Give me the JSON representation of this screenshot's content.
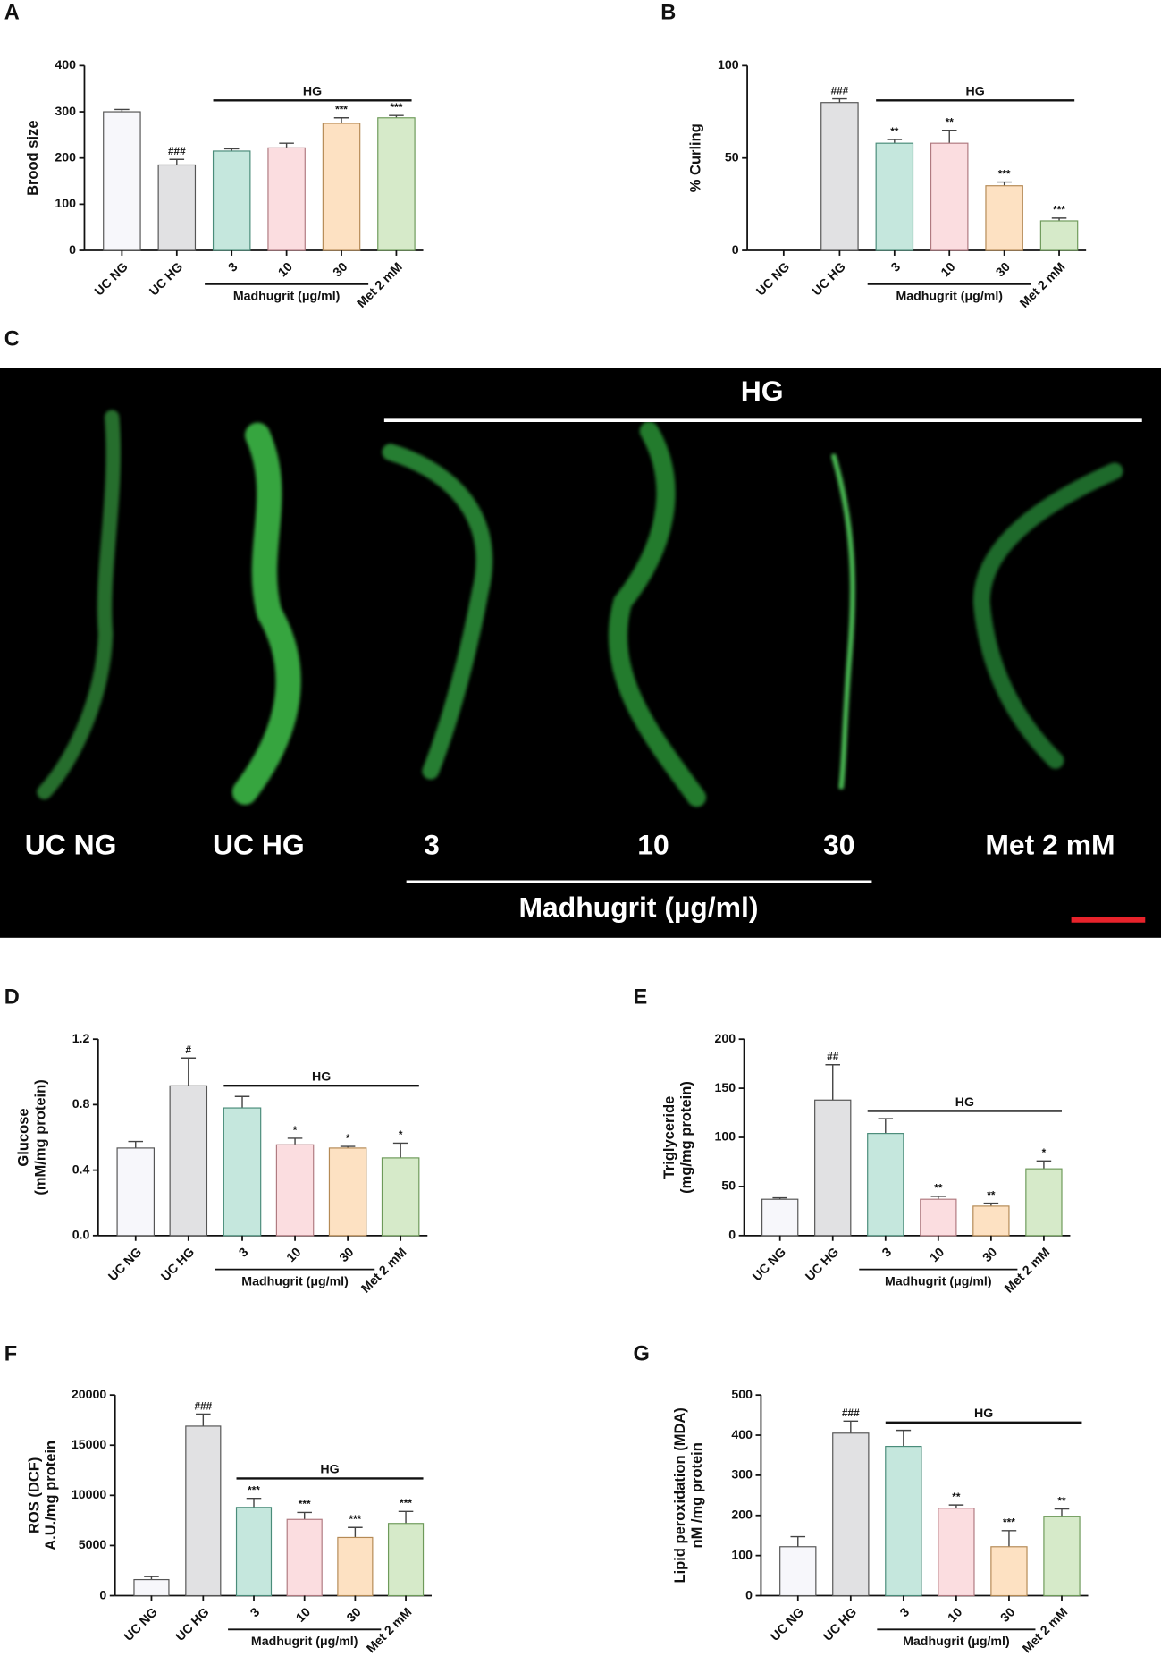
{
  "chart_data": [
    {
      "panel": "A",
      "type": "bar",
      "ylabel": [
        "Brood size"
      ],
      "categories": [
        "UC NG",
        "UC HG",
        "3",
        "10",
        "30",
        "Met 2 mM"
      ],
      "values": [
        300,
        185,
        215,
        222,
        275,
        287
      ],
      "errors": [
        5,
        12,
        5,
        10,
        12,
        5
      ],
      "annotations": [
        null,
        "###",
        null,
        null,
        "***",
        "***"
      ],
      "colors": [
        "#f7f7fb",
        "#e1e1e3",
        "#c5e7dd",
        "#fbdde0",
        "#fde1c2",
        "#d6eac9"
      ],
      "edge_colors": [
        "#555",
        "#555",
        "#4a8c7a",
        "#b07a80",
        "#b58a55",
        "#6e9a5a"
      ],
      "group_label": "HG",
      "sub_label": "Madhugrit (μg/ml)",
      "ylim": [
        0,
        400
      ],
      "yticks": [
        0,
        100,
        200,
        300,
        400
      ]
    },
    {
      "panel": "B",
      "type": "bar",
      "ylabel": [
        "% Curling"
      ],
      "categories": [
        "UC NG",
        "UC HG",
        "3",
        "10",
        "30",
        "Met 2 mM"
      ],
      "values": [
        0,
        80,
        58,
        58,
        35,
        16
      ],
      "errors": [
        0,
        2,
        2,
        7,
        2,
        1.5
      ],
      "annotations": [
        null,
        "###",
        "**",
        "**",
        "***",
        "***"
      ],
      "colors": [
        "#f7f7fb",
        "#e1e1e3",
        "#c5e7dd",
        "#fbdde0",
        "#fde1c2",
        "#d6eac9"
      ],
      "edge_colors": [
        "#555",
        "#555",
        "#4a8c7a",
        "#b07a80",
        "#b58a55",
        "#6e9a5a"
      ],
      "group_label": "HG",
      "sub_label": "Madhugrit (μg/ml)",
      "ylim": [
        0,
        100
      ],
      "yticks": [
        0,
        50,
        100
      ]
    },
    {
      "panel": "D",
      "type": "bar",
      "ylabel": [
        "Glucose",
        "(mM/mg protein)"
      ],
      "categories": [
        "UC NG",
        "UC HG",
        "3",
        "10",
        "30",
        "Met 2 mM"
      ],
      "values": [
        0.535,
        0.915,
        0.78,
        0.555,
        0.535,
        0.475
      ],
      "errors": [
        0.04,
        0.17,
        0.07,
        0.04,
        0.01,
        0.09
      ],
      "annotations": [
        null,
        "#",
        null,
        "*",
        "*",
        "*"
      ],
      "colors": [
        "#f7f7fb",
        "#e1e1e3",
        "#c5e7dd",
        "#fbdde0",
        "#fde1c2",
        "#d6eac9"
      ],
      "edge_colors": [
        "#555",
        "#555",
        "#4a8c7a",
        "#b07a80",
        "#b58a55",
        "#6e9a5a"
      ],
      "group_label": "HG",
      "sub_label": "Madhugrit (μg/ml)",
      "ylim": [
        0,
        1.2
      ],
      "yticks": [
        {
          "value": 0,
          "label": "0.0"
        },
        0.4,
        0.8,
        1.2
      ]
    },
    {
      "panel": "E",
      "type": "bar",
      "ylabel": [
        "Triglyceride",
        "(mg/mg protein)"
      ],
      "categories": [
        "UC NG",
        "UC HG",
        "3",
        "10",
        "30",
        "Met 2 mM"
      ],
      "values": [
        37,
        138,
        104,
        37,
        30,
        68
      ],
      "errors": [
        1.5,
        36,
        15,
        3,
        3,
        8
      ],
      "annotations": [
        null,
        "##",
        null,
        "**",
        "**",
        "*"
      ],
      "colors": [
        "#f7f7fb",
        "#e1e1e3",
        "#c5e7dd",
        "#fbdde0",
        "#fde1c2",
        "#d6eac9"
      ],
      "edge_colors": [
        "#555",
        "#555",
        "#4a8c7a",
        "#b07a80",
        "#b58a55",
        "#6e9a5a"
      ],
      "group_label": "HG",
      "sub_label": "Madhugrit (μg/ml)",
      "ylim": [
        0,
        200
      ],
      "yticks": [
        0,
        50,
        100,
        150,
        200
      ]
    },
    {
      "panel": "F",
      "type": "bar",
      "ylabel": [
        "ROS (DCF)",
        "A.U./mg protein"
      ],
      "categories": [
        "UC NG",
        "UC HG",
        "3",
        "10",
        "30",
        "Met 2 mM"
      ],
      "values": [
        1600,
        16900,
        8800,
        7600,
        5800,
        7200
      ],
      "errors": [
        300,
        1200,
        900,
        700,
        1000,
        1200
      ],
      "annotations": [
        null,
        "###",
        "***",
        "***",
        "***",
        "***"
      ],
      "colors": [
        "#f7f7fb",
        "#e1e1e3",
        "#c5e7dd",
        "#fbdde0",
        "#fde1c2",
        "#d6eac9"
      ],
      "edge_colors": [
        "#555",
        "#555",
        "#4a8c7a",
        "#b07a80",
        "#b58a55",
        "#6e9a5a"
      ],
      "group_label": "HG",
      "sub_label": "Madhugrit (μg/ml)",
      "ylim": [
        0,
        20000
      ],
      "yticks": [
        0,
        5000,
        10000,
        15000,
        20000
      ]
    },
    {
      "panel": "G",
      "type": "bar",
      "ylabel": [
        "Lipid peroxidation (MDA)",
        "nM /mg protein"
      ],
      "categories": [
        "UC NG",
        "UC HG",
        "3",
        "10",
        "30",
        "Met 2 mM"
      ],
      "values": [
        122,
        405,
        372,
        218,
        122,
        198
      ],
      "errors": [
        25,
        30,
        40,
        8,
        40,
        18
      ],
      "annotations": [
        null,
        "###",
        null,
        "**",
        "***",
        "**"
      ],
      "colors": [
        "#f7f7fb",
        "#e1e1e3",
        "#c5e7dd",
        "#fbdde0",
        "#fde1c2",
        "#d6eac9"
      ],
      "edge_colors": [
        "#555",
        "#555",
        "#4a8c7a",
        "#b07a80",
        "#b58a55",
        "#6e9a5a"
      ],
      "group_label": "HG",
      "sub_label": "Madhugrit (μg/ml)",
      "ylim": [
        0,
        500
      ],
      "yticks": [
        0,
        100,
        200,
        300,
        400,
        500
      ]
    }
  ],
  "image_panel": {
    "panel": "C",
    "group_label": "HG",
    "labels": [
      "UC NG",
      "UC HG",
      "3",
      "10",
      "30",
      "Met 2 mM"
    ],
    "sub_label": "Madhugrit (µg/ml)"
  }
}
